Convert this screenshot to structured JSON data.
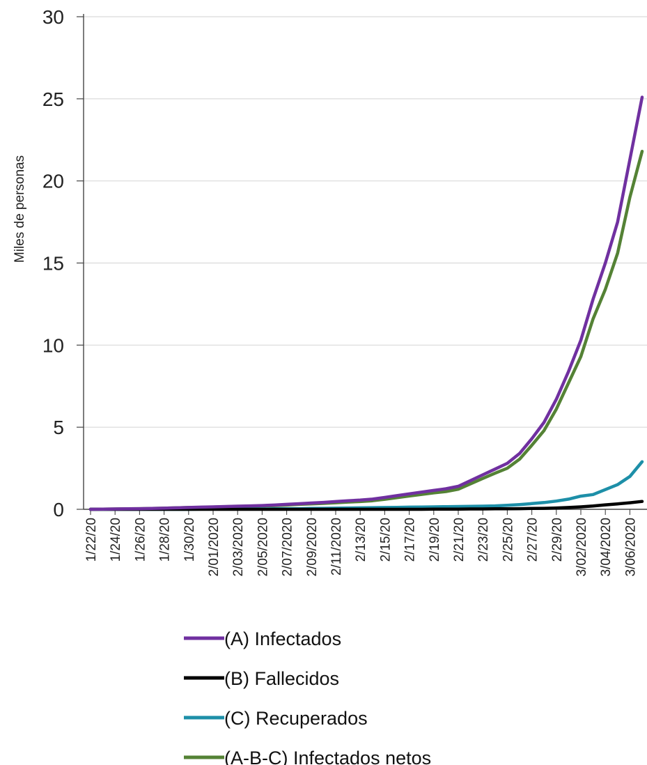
{
  "chart_data": {
    "type": "line",
    "title": "",
    "xlabel": "",
    "ylabel": "Miles de personas",
    "ylim": [
      0,
      30
    ],
    "yticks": [
      "0",
      "5",
      "10",
      "15",
      "20",
      "25",
      "30"
    ],
    "grid": "horizontal",
    "legend_position": "bottom",
    "x": [
      "1/22/20",
      "1/23/20",
      "1/24/20",
      "1/25/20",
      "1/26/20",
      "1/27/20",
      "1/28/20",
      "1/29/20",
      "1/30/20",
      "1/31/20",
      "2/01/2020",
      "2/02/2020",
      "2/03/2020",
      "2/04/2020",
      "2/05/2020",
      "2/06/2020",
      "2/07/2020",
      "2/08/2020",
      "2/09/2020",
      "2/10/2020",
      "2/11/2020",
      "2/12/2020",
      "2/13/20",
      "2/14/20",
      "2/15/20",
      "2/16/20",
      "2/17/20",
      "2/18/20",
      "2/19/20",
      "2/20/20",
      "2/21/20",
      "2/22/20",
      "2/23/20",
      "2/24/20",
      "2/25/20",
      "2/26/20",
      "2/27/20",
      "2/28/20",
      "2/29/20",
      "3/01/2020",
      "3/02/2020",
      "3/03/2020",
      "3/04/2020",
      "3/05/2020",
      "3/06/2020",
      "3/07/2020"
    ],
    "xtick_labels": [
      "1/22/20",
      "1/24/20",
      "1/26/20",
      "1/28/20",
      "1/30/20",
      "2/01/2020",
      "2/03/2020",
      "2/05/2020",
      "2/07/2020",
      "2/09/2020",
      "2/11/2020",
      "2/13/20",
      "2/15/20",
      "2/17/20",
      "2/19/20",
      "2/21/20",
      "2/23/20",
      "2/25/20",
      "2/27/20",
      "2/29/20",
      "3/02/2020",
      "3/04/2020",
      "3/06/2020"
    ],
    "series": [
      {
        "name": "(A) Infectados",
        "color": "#7030A0",
        "values": [
          0.0,
          0.01,
          0.02,
          0.03,
          0.04,
          0.05,
          0.07,
          0.09,
          0.11,
          0.13,
          0.15,
          0.17,
          0.19,
          0.21,
          0.23,
          0.26,
          0.3,
          0.34,
          0.38,
          0.42,
          0.47,
          0.52,
          0.56,
          0.62,
          0.72,
          0.83,
          0.94,
          1.05,
          1.15,
          1.25,
          1.4,
          1.75,
          2.1,
          2.45,
          2.8,
          3.4,
          4.3,
          5.3,
          6.7,
          8.4,
          10.3,
          12.8,
          15.0,
          17.5,
          21.3,
          25.1
        ]
      },
      {
        "name": "(B) Fallecidos",
        "color": "#000000",
        "values": [
          0,
          0,
          0,
          0,
          0,
          0,
          0,
          0,
          0,
          0,
          0,
          0,
          0,
          0,
          0,
          0,
          0,
          0,
          0,
          0,
          0,
          0,
          0,
          0,
          0,
          0,
          0,
          0,
          0.01,
          0.01,
          0.01,
          0.02,
          0.02,
          0.03,
          0.03,
          0.04,
          0.05,
          0.06,
          0.08,
          0.11,
          0.15,
          0.2,
          0.27,
          0.33,
          0.4,
          0.48
        ]
      },
      {
        "name": "(C) Recuperados",
        "color": "#1D8FA8",
        "values": [
          0,
          0,
          0,
          0,
          0,
          0,
          0,
          0,
          0,
          0.01,
          0.01,
          0.01,
          0.02,
          0.02,
          0.02,
          0.03,
          0.04,
          0.04,
          0.05,
          0.06,
          0.07,
          0.08,
          0.09,
          0.1,
          0.11,
          0.12,
          0.13,
          0.14,
          0.15,
          0.16,
          0.17,
          0.18,
          0.19,
          0.21,
          0.24,
          0.29,
          0.35,
          0.41,
          0.5,
          0.62,
          0.8,
          0.9,
          1.2,
          1.5,
          2.0,
          2.9
        ]
      },
      {
        "name": "(A-B-C) Infectados netos",
        "color": "#548235",
        "values": [
          0.0,
          0.01,
          0.02,
          0.03,
          0.04,
          0.05,
          0.07,
          0.09,
          0.11,
          0.12,
          0.14,
          0.16,
          0.17,
          0.19,
          0.21,
          0.23,
          0.26,
          0.3,
          0.33,
          0.36,
          0.4,
          0.44,
          0.47,
          0.52,
          0.61,
          0.71,
          0.81,
          0.91,
          1.0,
          1.08,
          1.22,
          1.55,
          1.88,
          2.2,
          2.5,
          3.05,
          3.9,
          4.8,
          6.1,
          7.7,
          9.3,
          11.6,
          13.4,
          15.6,
          19.0,
          21.8
        ]
      }
    ]
  }
}
